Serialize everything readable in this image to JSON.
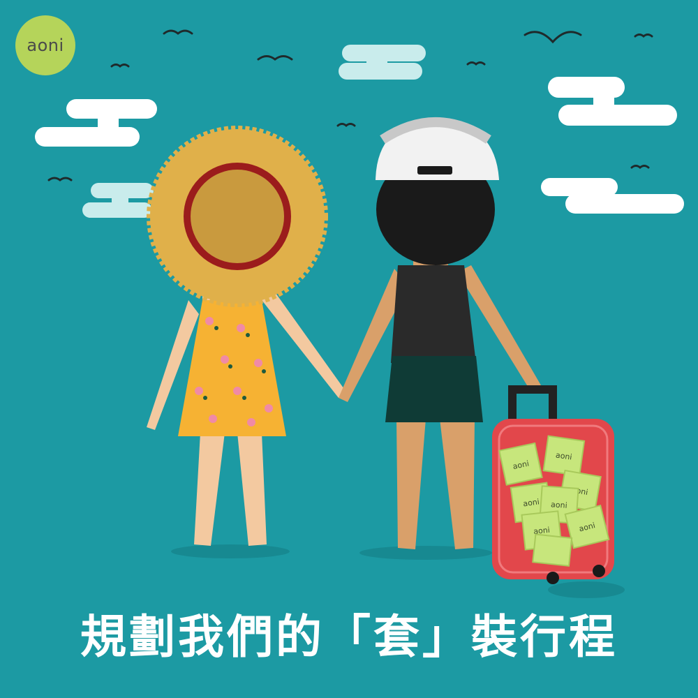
{
  "colors": {
    "background": "#1c9aa3",
    "cloud": "#ffffff",
    "cloud_light": "#c9ecec",
    "logo": "#b5d45a",
    "hat": "#e0b04a",
    "hat_band": "#9b1c1c",
    "dress": "#f6b233",
    "skin": "#d9a06a",
    "cap": "#f2f2f2",
    "tank_top": "#2a2a2a",
    "shorts": "#0f3b36",
    "suitcase": "#e2474b",
    "condom_pack": "#c7e67c"
  },
  "logo": {
    "text": "aoni"
  },
  "caption": {
    "text": "規劃我們的「套」裝行程"
  },
  "suitcase_pack_label": "aoni",
  "icons": [
    "logo-icon",
    "bird-icon",
    "cloud-icon",
    "suitcase-icon",
    "condom-pack-icon"
  ]
}
